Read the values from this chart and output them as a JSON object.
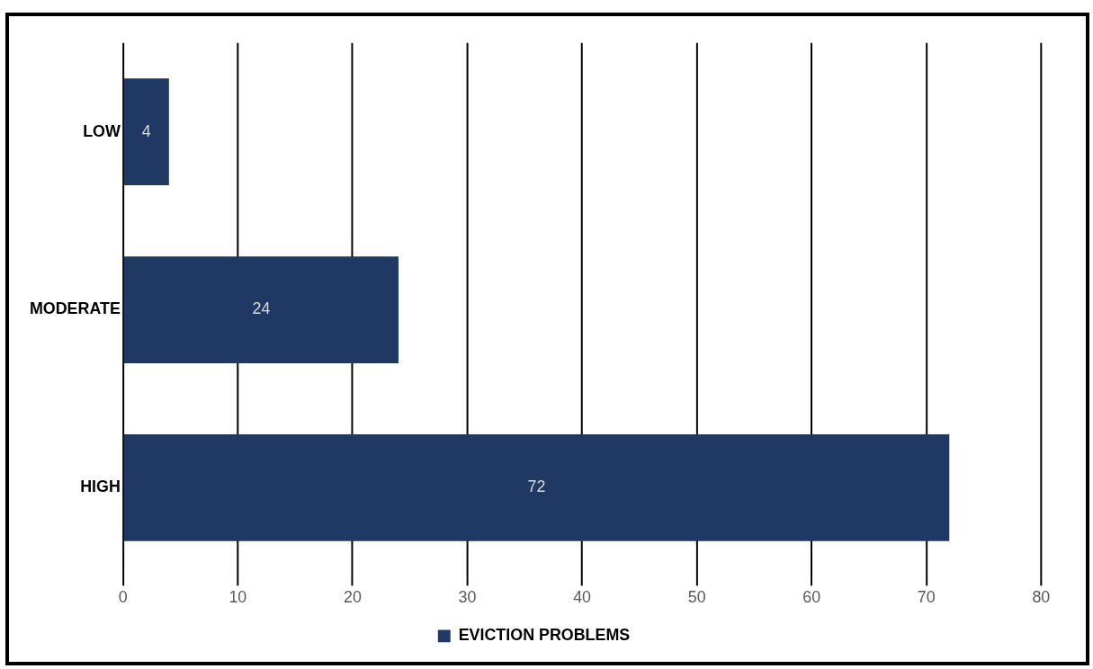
{
  "chart_data": {
    "type": "bar",
    "orientation": "horizontal",
    "categories": [
      "LOW",
      "MODERATE",
      "HIGH"
    ],
    "series": [
      {
        "name": "EVICTION PROBLEMS",
        "color": "#203864",
        "values": [
          4,
          24,
          72
        ]
      }
    ],
    "xlim": [
      0,
      80
    ],
    "xticks": [
      0,
      10,
      20,
      30,
      40,
      50,
      60,
      70,
      80
    ],
    "grid": "x",
    "legend": "bottom",
    "data_labels": true
  }
}
